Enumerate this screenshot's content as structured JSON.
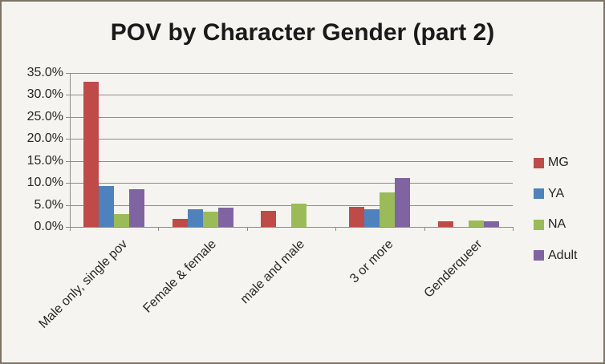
{
  "chart_data": {
    "type": "bar",
    "title": "POV by Character Gender (part 2)",
    "categories": [
      "Male only, single pov",
      "Female & female",
      "male and male",
      "3 or more",
      "Genderqueer"
    ],
    "series": [
      {
        "name": "MG",
        "color": "#be4b48",
        "values": [
          33.0,
          1.9,
          3.7,
          4.5,
          1.2
        ]
      },
      {
        "name": "YA",
        "color": "#4f81bd",
        "values": [
          9.3,
          4.0,
          0,
          4.1,
          0
        ]
      },
      {
        "name": "NA",
        "color": "#9bbb59",
        "values": [
          3.0,
          3.4,
          5.3,
          7.8,
          1.5
        ]
      },
      {
        "name": "Adult",
        "color": "#8064a2",
        "values": [
          8.6,
          4.4,
          0,
          11.1,
          1.3
        ]
      }
    ],
    "xlabel": "",
    "ylabel": "",
    "ylim": [
      0,
      35
    ],
    "ytick_step": 5,
    "yticks": [
      "0.0%",
      "5.0%",
      "10.0%",
      "15.0%",
      "20.0%",
      "25.0%",
      "30.0%",
      "35.0%"
    ],
    "grid": true,
    "legend_position": "right"
  },
  "palette": {
    "background": "#f6f4f0",
    "frame_border": "#7c7365",
    "gridline": "#8c8c8c",
    "text": "#262626",
    "title_text": "#1a1a1a"
  }
}
